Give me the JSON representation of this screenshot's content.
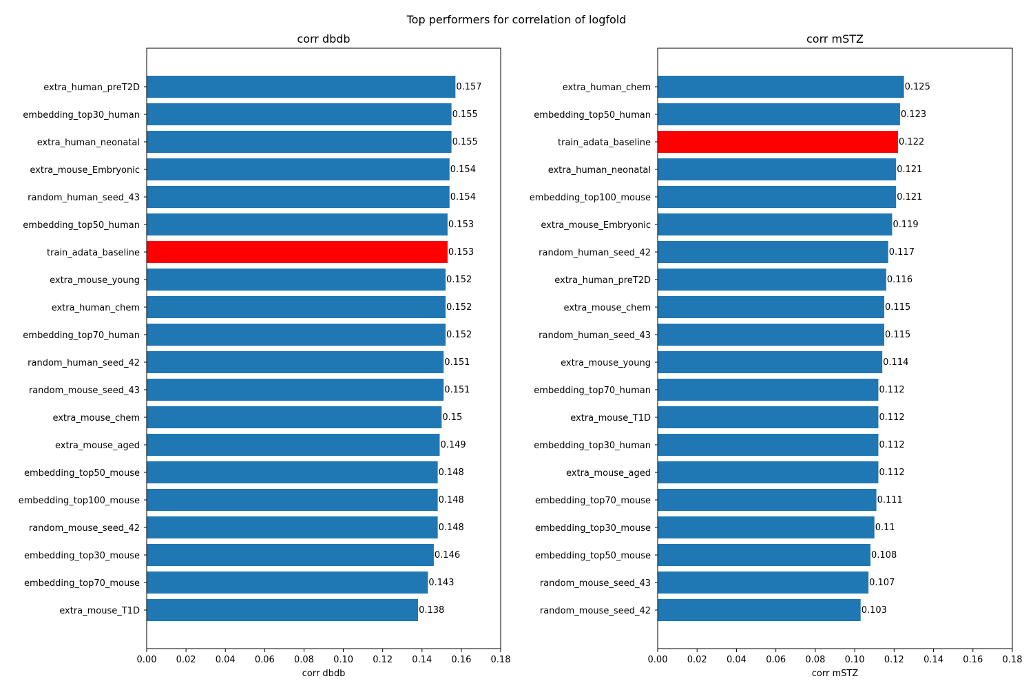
{
  "figure": {
    "title": "Top performers for correlation of logfold"
  },
  "chart_data": [
    {
      "type": "bar",
      "orientation": "horizontal",
      "title": "corr dbdb",
      "xlabel": "corr dbdb",
      "ylabel": "",
      "xlim": [
        0,
        0.18
      ],
      "xticks": [
        "0.00",
        "0.02",
        "0.04",
        "0.06",
        "0.08",
        "0.10",
        "0.12",
        "0.14",
        "0.16",
        "0.18"
      ],
      "grid": false,
      "default_color": "#1f77b4",
      "highlight_color": "#ff0000",
      "highlight_category": "train_adata_baseline",
      "categories": [
        "extra_human_preT2D",
        "embedding_top30_human",
        "extra_human_neonatal",
        "extra_mouse_Embryonic",
        "random_human_seed_43",
        "embedding_top50_human",
        "train_adata_baseline",
        "extra_mouse_young",
        "extra_human_chem",
        "embedding_top70_human",
        "random_human_seed_42",
        "random_mouse_seed_43",
        "extra_mouse_chem",
        "extra_mouse_aged",
        "embedding_top50_mouse",
        "embedding_top100_mouse",
        "random_mouse_seed_42",
        "embedding_top30_mouse",
        "embedding_top70_mouse",
        "extra_mouse_T1D"
      ],
      "values": [
        0.157,
        0.155,
        0.155,
        0.154,
        0.154,
        0.153,
        0.153,
        0.152,
        0.152,
        0.152,
        0.151,
        0.151,
        0.15,
        0.149,
        0.148,
        0.148,
        0.148,
        0.146,
        0.143,
        0.138
      ],
      "value_labels": [
        "0.157",
        "0.155",
        "0.155",
        "0.154",
        "0.154",
        "0.153",
        "0.153",
        "0.152",
        "0.152",
        "0.152",
        "0.151",
        "0.151",
        "0.15",
        "0.149",
        "0.148",
        "0.148",
        "0.148",
        "0.146",
        "0.143",
        "0.138"
      ]
    },
    {
      "type": "bar",
      "orientation": "horizontal",
      "title": "corr mSTZ",
      "xlabel": "corr mSTZ",
      "ylabel": "",
      "xlim": [
        0,
        0.18
      ],
      "xticks": [
        "0.00",
        "0.02",
        "0.04",
        "0.06",
        "0.08",
        "0.10",
        "0.12",
        "0.14",
        "0.16",
        "0.18"
      ],
      "grid": false,
      "default_color": "#1f77b4",
      "highlight_color": "#ff0000",
      "highlight_category": "train_adata_baseline",
      "categories": [
        "extra_human_chem",
        "embedding_top50_human",
        "train_adata_baseline",
        "extra_human_neonatal",
        "embedding_top100_mouse",
        "extra_mouse_Embryonic",
        "random_human_seed_42",
        "extra_human_preT2D",
        "extra_mouse_chem",
        "random_human_seed_43",
        "extra_mouse_young",
        "embedding_top70_human",
        "extra_mouse_T1D",
        "embedding_top30_human",
        "extra_mouse_aged",
        "embedding_top70_mouse",
        "embedding_top30_mouse",
        "embedding_top50_mouse",
        "random_mouse_seed_43",
        "random_mouse_seed_42"
      ],
      "values": [
        0.125,
        0.123,
        0.122,
        0.121,
        0.121,
        0.119,
        0.117,
        0.116,
        0.115,
        0.115,
        0.114,
        0.112,
        0.112,
        0.112,
        0.112,
        0.111,
        0.11,
        0.108,
        0.107,
        0.103
      ],
      "value_labels": [
        "0.125",
        "0.123",
        "0.122",
        "0.121",
        "0.121",
        "0.119",
        "0.117",
        "0.116",
        "0.115",
        "0.115",
        "0.114",
        "0.112",
        "0.112",
        "0.112",
        "0.112",
        "0.111",
        "0.11",
        "0.108",
        "0.107",
        "0.103"
      ]
    }
  ]
}
